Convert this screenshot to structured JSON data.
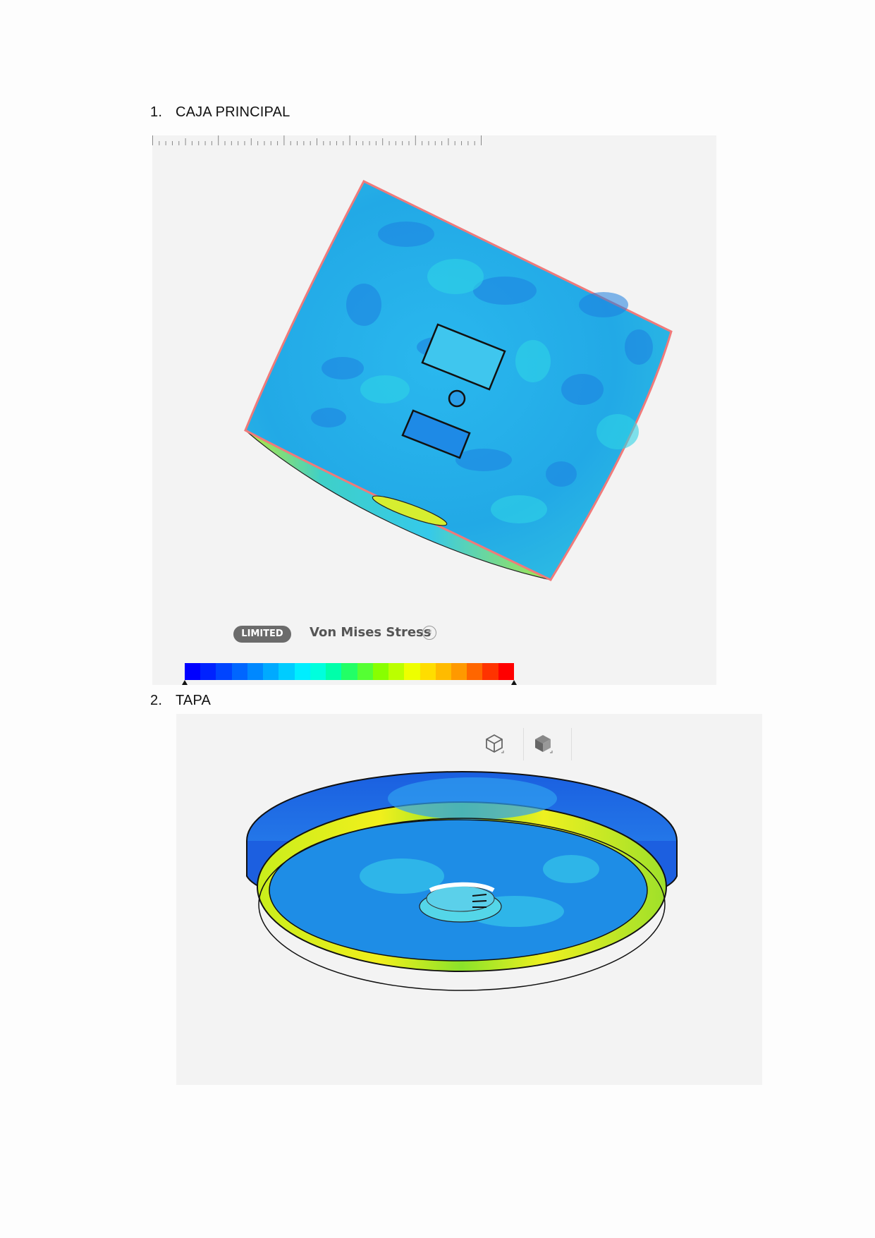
{
  "sections": [
    {
      "number": "1.",
      "title": "CAJA PRINCIPAL"
    },
    {
      "number": "2.",
      "title": "TAPA"
    }
  ],
  "legend": {
    "badge": "LIMITED",
    "title": "Von Mises Stress",
    "menu_icon": "list-icon",
    "colors": [
      "#0000ff",
      "#0022ff",
      "#0044ff",
      "#0066ff",
      "#0088ff",
      "#00aaff",
      "#00ccff",
      "#00eeff",
      "#00ffdd",
      "#00ffaa",
      "#22ff66",
      "#55ff33",
      "#88ff00",
      "#bbff00",
      "#eeff00",
      "#ffdd00",
      "#ffbb00",
      "#ff9900",
      "#ff6600",
      "#ff3300",
      "#ff0000"
    ]
  },
  "view_controls": [
    {
      "name": "isometric-wireframe-icon"
    },
    {
      "name": "isometric-solid-icon"
    }
  ]
}
